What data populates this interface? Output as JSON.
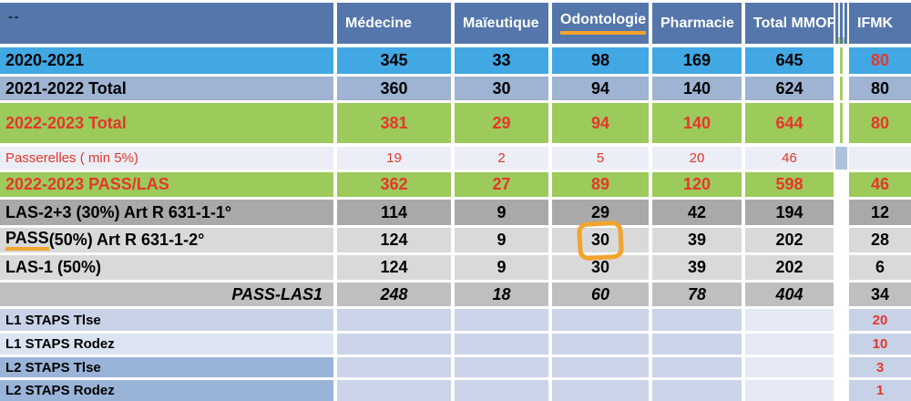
{
  "table": {
    "corner_label": "--",
    "columns": [
      {
        "label": "Médecine",
        "underlined": false
      },
      {
        "label": "Maïeutique",
        "underlined": false
      },
      {
        "label": "Odontologie",
        "underlined": true
      },
      {
        "label": "Pharmacie",
        "underlined": false
      },
      {
        "label": "Total MMOP",
        "underlined": false
      },
      {
        "label": "IFMK",
        "underlined": false
      }
    ],
    "rows": [
      {
        "label": "2020-2021",
        "values": [
          "345",
          "33",
          "98",
          "169",
          "645"
        ],
        "ifmk": "80",
        "style": "bright-blue",
        "size": "lg",
        "red": false,
        "ifmk_red": true,
        "sep": "greenline"
      },
      {
        "label": "2021-2022 Total",
        "values": [
          "360",
          "30",
          "94",
          "140",
          "624"
        ],
        "ifmk": "80",
        "style": "gray-blue",
        "size": "lg",
        "red": false,
        "ifmk_red": false,
        "sep": "greenline"
      },
      {
        "label": "2022-2023 Total",
        "values": [
          "381",
          "29",
          "94",
          "140",
          "644"
        ],
        "ifmk": "80",
        "style": "green",
        "size": "lg",
        "red": true,
        "ifmk_red": true,
        "sep": "greenline"
      },
      {
        "label": "Passerelles ( min 5%)",
        "values": [
          "19",
          "2",
          "5",
          "20",
          "46"
        ],
        "ifmk": "",
        "style": "lavender",
        "size": "sm",
        "red": true,
        "ifmk_red": false,
        "thin": true,
        "sep": "block"
      },
      {
        "label": "2022-2023 PASS/LAS",
        "values": [
          "362",
          "27",
          "89",
          "120",
          "598"
        ],
        "ifmk": "46",
        "style": "green",
        "size": "lg",
        "red": true,
        "ifmk_red": true,
        "sep": "none"
      },
      {
        "label": "LAS-2+3 (30%) Art R 631-1-1°",
        "values": [
          "114",
          "9",
          "29",
          "42",
          "194"
        ],
        "ifmk": "12",
        "style": "dark-gray",
        "size": "lg",
        "red": false,
        "ifmk_red": false,
        "sep": "none"
      },
      {
        "label": "PASS (50%) Art R 631-1-2°",
        "values": [
          "124",
          "9",
          "30",
          "39",
          "202"
        ],
        "ifmk": "28",
        "style": "light-gray",
        "size": "lg",
        "red": false,
        "ifmk_red": false,
        "underline_prefix": "PASS",
        "circled_col": 2,
        "sep": "none"
      },
      {
        "label": "LAS-1 (50%)",
        "values": [
          "124",
          "9",
          "30",
          "39",
          "202"
        ],
        "ifmk": "6",
        "style": "light-gray",
        "size": "lg",
        "red": false,
        "ifmk_red": false,
        "sep": "none"
      },
      {
        "label": "PASS-LAS1",
        "values": [
          "248",
          "18",
          "60",
          "78",
          "404"
        ],
        "ifmk": "34",
        "style": "mid-gray",
        "size": "lg",
        "red": false,
        "ifmk_red": false,
        "italic": true,
        "label_right": true,
        "sep": "none"
      },
      {
        "label": "L1 STAPS Tlse",
        "values": [
          "",
          "",
          "",
          "",
          ""
        ],
        "ifmk": "20",
        "style": "staps",
        "label_style": "staps-l1a",
        "size": "sm",
        "red": false,
        "ifmk_red": true,
        "sep": "none"
      },
      {
        "label": "L1 STAPS Rodez",
        "values": [
          "",
          "",
          "",
          "",
          ""
        ],
        "ifmk": "10",
        "style": "staps",
        "label_style": "staps-l1b",
        "size": "sm",
        "red": false,
        "ifmk_red": true,
        "sep": "none"
      },
      {
        "label": "L2 STAPS Tlse",
        "values": [
          "",
          "",
          "",
          "",
          ""
        ],
        "ifmk": "3",
        "style": "staps",
        "label_style": "staps-l2",
        "size": "sm",
        "red": false,
        "ifmk_red": true,
        "sep": "none"
      },
      {
        "label": "L2 STAPS Rodez",
        "values": [
          "",
          "",
          "",
          "",
          ""
        ],
        "ifmk": "1",
        "style": "staps",
        "label_style": "staps-l2",
        "size": "sm",
        "red": false,
        "ifmk_red": true,
        "sep": "none"
      }
    ]
  },
  "annotations": {
    "odontologie_header_underline_color": "#F2A42E",
    "pass_label_underline_color": "#F2A42E",
    "circled_value": "30",
    "circled_value_row": "PASS (50%) Art R 631-1-2°",
    "circled_value_column": "Odontologie",
    "circle_color": "#F2A42E"
  },
  "colors": {
    "header_blue": "#5476AB",
    "bright_blue": "#41A8E4",
    "gray_blue": "#9FB3D3",
    "highlight_green": "#9CCA5B",
    "accent_red": "#E5372C",
    "accent_orange": "#F2A42E",
    "separator_green": "#A6CB66",
    "separator_block_blue": "#AEC2DD"
  }
}
